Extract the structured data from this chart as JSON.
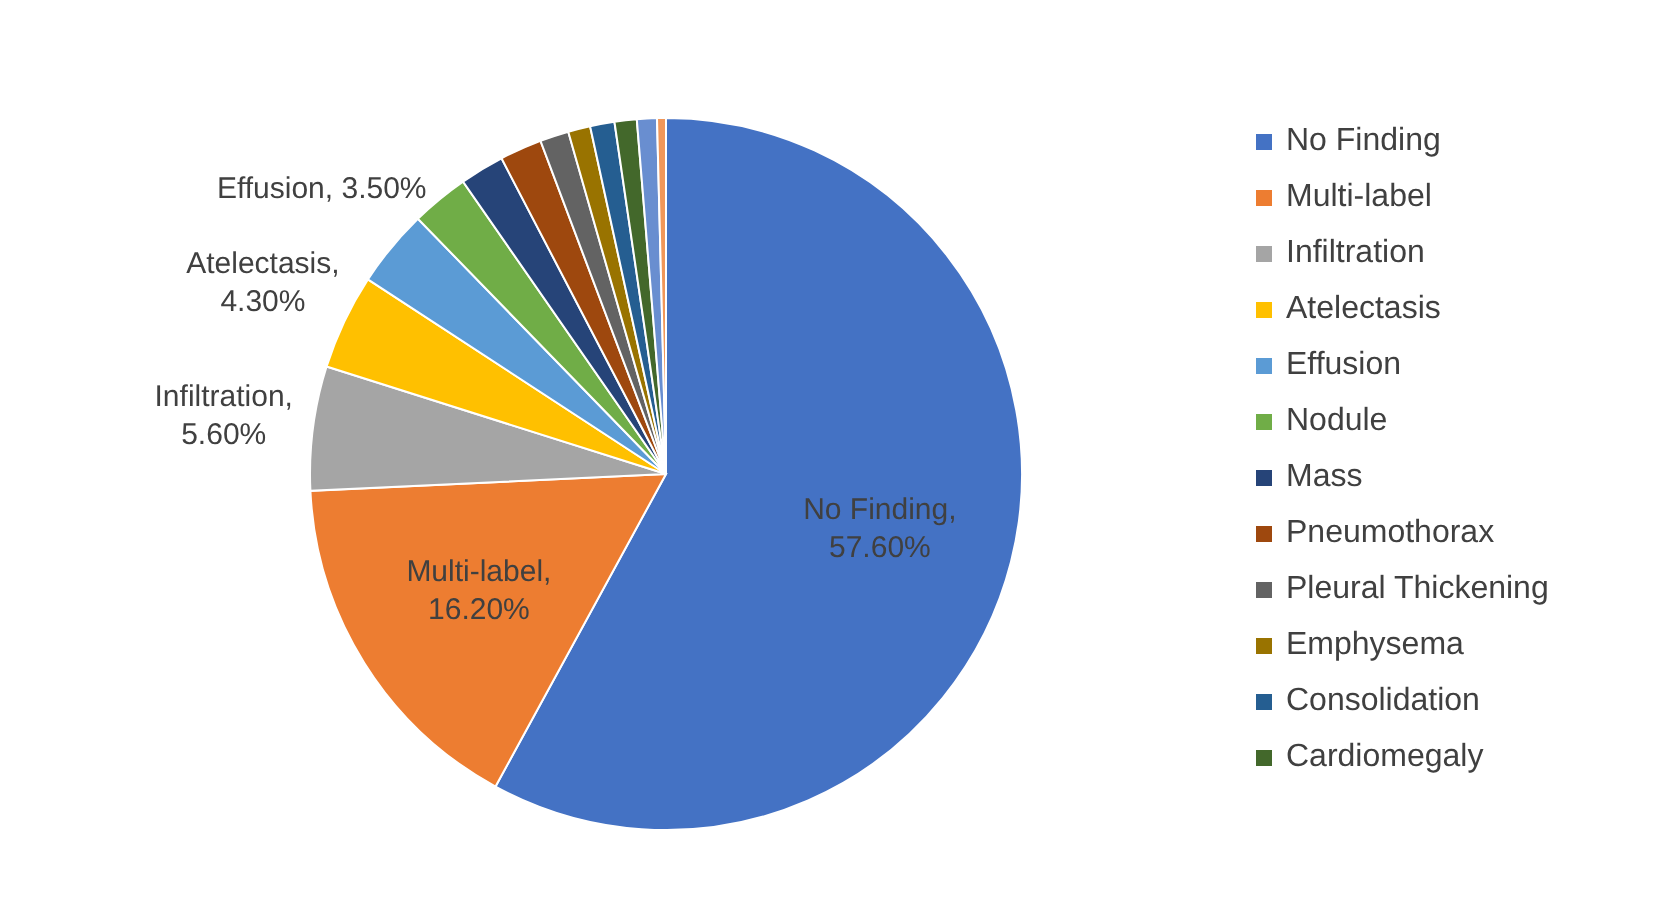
{
  "chart_data": {
    "type": "pie",
    "categories": [
      "No Finding",
      "Multi-label",
      "Infiltration",
      "Atelectasis",
      "Effusion",
      "Nodule",
      "Mass",
      "Pneumothorax",
      "Pleural Thickening",
      "Emphysema",
      "Consolidation",
      "Cardiomegaly",
      null,
      null
    ],
    "values": [
      57.6,
      16.2,
      5.6,
      4.3,
      3.5,
      2.6,
      2.0,
      1.9,
      1.3,
      1.0,
      1.1,
      1.0,
      0.9,
      0.4
    ],
    "colors": [
      "#4472c4",
      "#ed7d31",
      "#a5a5a5",
      "#ffc000",
      "#5b9bd5",
      "#70ad47",
      "#264478",
      "#9e480e",
      "#636363",
      "#997300",
      "#255e91",
      "#43682b",
      "#698ed0",
      "#f1975a"
    ],
    "value_labels": [
      "No Finding, 57.60%",
      "Multi-label, 16.20%",
      "Infiltration, 5.60%",
      "Atelectasis, 4.30%",
      "Effusion, 3.50%",
      null,
      null,
      null,
      null,
      null,
      null,
      null,
      null,
      null
    ],
    "legend": "right"
  }
}
